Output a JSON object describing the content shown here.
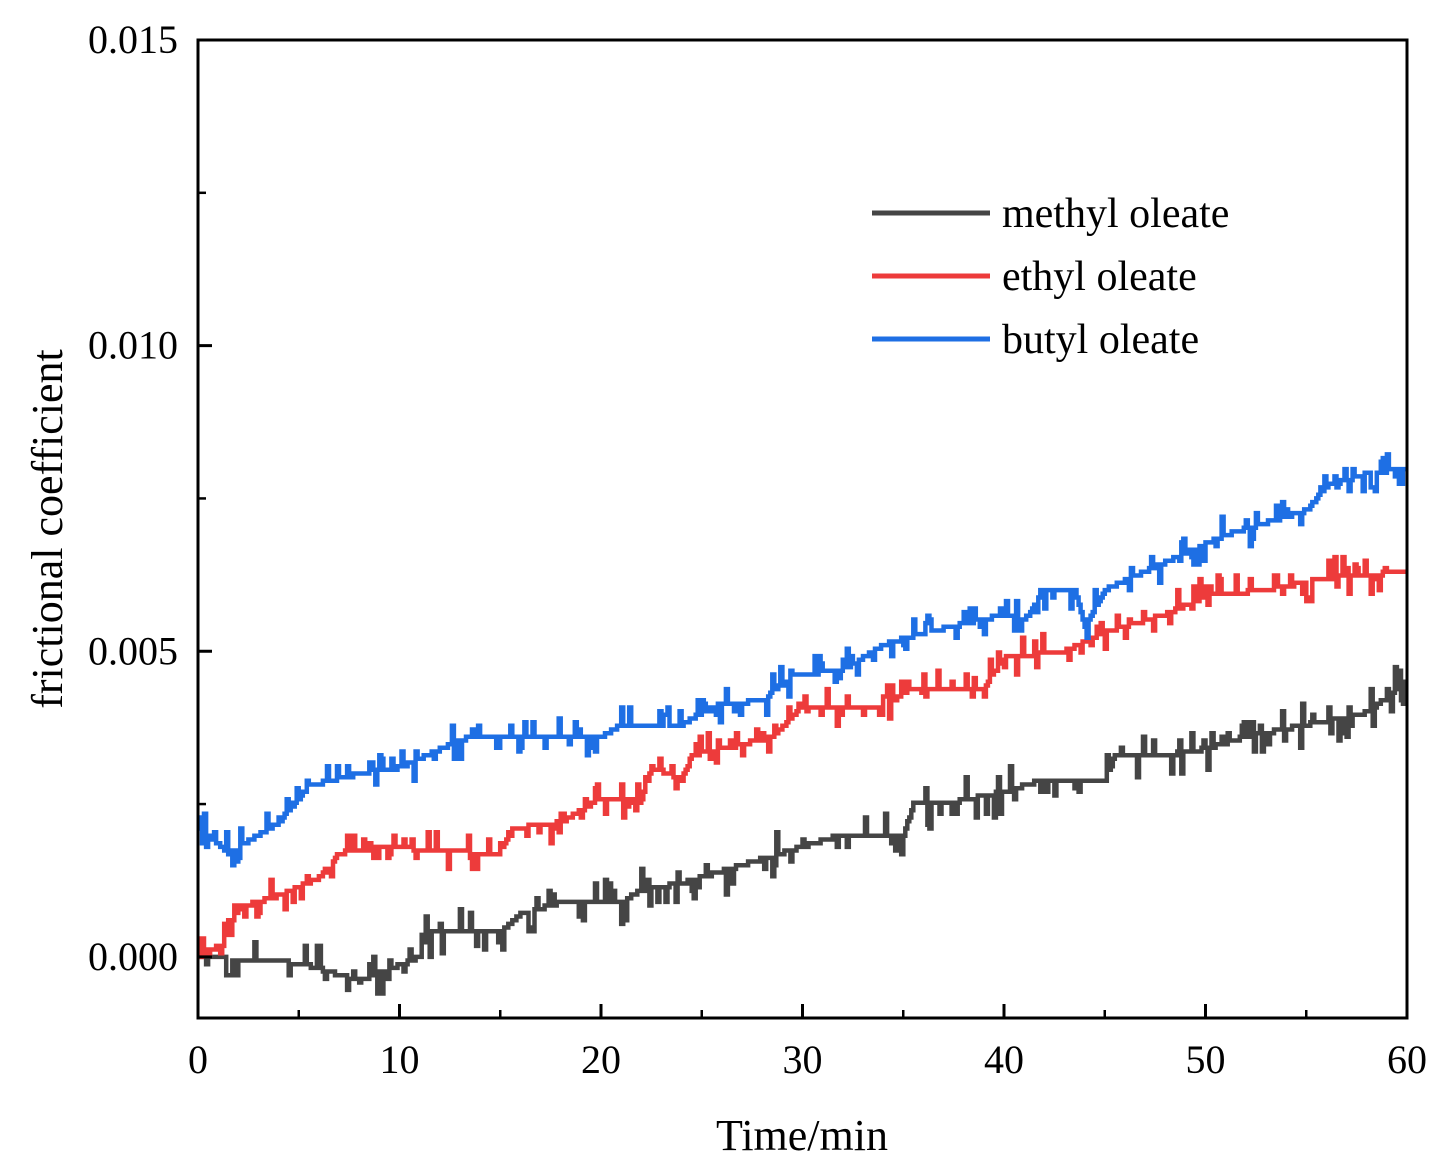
{
  "chart_data": {
    "type": "line",
    "title": "",
    "xlabel": "Time/min",
    "ylabel": "frictional coefficient",
    "xlim": [
      0,
      60
    ],
    "ylim": [
      -0.001,
      0.015
    ],
    "x_ticks": [
      0,
      10,
      20,
      30,
      40,
      50,
      60
    ],
    "x_tick_labels": [
      "0",
      "10",
      "20",
      "30",
      "40",
      "50",
      "60"
    ],
    "y_ticks": [
      0.0,
      0.005,
      0.01,
      0.015
    ],
    "y_tick_labels": [
      "0.000",
      "0.005",
      "0.010",
      "0.015"
    ],
    "grid": false,
    "legend": "top-right",
    "series": [
      {
        "name": "methyl oleate",
        "color": "#454545",
        "noise": 0.00028,
        "points": [
          [
            0,
            0.0
          ],
          [
            5,
            -0.0001
          ],
          [
            8,
            -0.0004
          ],
          [
            11,
            0.0
          ],
          [
            11.3,
            0.0004
          ],
          [
            15,
            0.0004
          ],
          [
            16,
            0.0007
          ],
          [
            18,
            0.0009
          ],
          [
            21,
            0.0009
          ],
          [
            22,
            0.0011
          ],
          [
            24,
            0.0012
          ],
          [
            27,
            0.0015
          ],
          [
            30,
            0.0018
          ],
          [
            32,
            0.002
          ],
          [
            35,
            0.002
          ],
          [
            35.5,
            0.0025
          ],
          [
            37,
            0.0025
          ],
          [
            40,
            0.0027
          ],
          [
            42,
            0.0029
          ],
          [
            45,
            0.0029
          ],
          [
            45.5,
            0.0033
          ],
          [
            48,
            0.0033
          ],
          [
            50,
            0.0034
          ],
          [
            52,
            0.0036
          ],
          [
            55,
            0.0038
          ],
          [
            58,
            0.004
          ],
          [
            60,
            0.0045
          ]
        ]
      },
      {
        "name": "ethyl oleate",
        "color": "#ed3b3b",
        "noise": 0.00022,
        "points": [
          [
            0,
            0.0
          ],
          [
            1.2,
            0.0002
          ],
          [
            2,
            0.0008
          ],
          [
            4,
            0.001
          ],
          [
            6,
            0.0013
          ],
          [
            7,
            0.0017
          ],
          [
            9,
            0.0018
          ],
          [
            14,
            0.0017
          ],
          [
            15,
            0.0017
          ],
          [
            15.5,
            0.0021
          ],
          [
            18,
            0.0022
          ],
          [
            20,
            0.0026
          ],
          [
            22,
            0.0026
          ],
          [
            22.5,
            0.0031
          ],
          [
            24,
            0.0029
          ],
          [
            24.5,
            0.0033
          ],
          [
            26,
            0.0034
          ],
          [
            28.5,
            0.0036
          ],
          [
            30,
            0.0041
          ],
          [
            34,
            0.0041
          ],
          [
            35.5,
            0.0044
          ],
          [
            39,
            0.0044
          ],
          [
            40,
            0.0049
          ],
          [
            43,
            0.005
          ],
          [
            45,
            0.0053
          ],
          [
            48,
            0.0056
          ],
          [
            50,
            0.0059
          ],
          [
            53,
            0.006
          ],
          [
            56,
            0.0062
          ],
          [
            60,
            0.0063
          ]
        ]
      },
      {
        "name": "butyl oleate",
        "color": "#1e6fe4",
        "noise": 0.00022,
        "points": [
          [
            0,
            0.0021
          ],
          [
            1.5,
            0.0017
          ],
          [
            3,
            0.002
          ],
          [
            4,
            0.0022
          ],
          [
            5.5,
            0.0028
          ],
          [
            8,
            0.003
          ],
          [
            10,
            0.0031
          ],
          [
            12,
            0.0034
          ],
          [
            13.5,
            0.0036
          ],
          [
            18,
            0.0036
          ],
          [
            20,
            0.0036
          ],
          [
            21,
            0.0038
          ],
          [
            24,
            0.0038
          ],
          [
            25.5,
            0.0041
          ],
          [
            28,
            0.0042
          ],
          [
            29.5,
            0.0046
          ],
          [
            32,
            0.0047
          ],
          [
            34,
            0.0051
          ],
          [
            36,
            0.0053
          ],
          [
            40,
            0.0056
          ],
          [
            41,
            0.0055
          ],
          [
            42,
            0.006
          ],
          [
            43.5,
            0.006
          ],
          [
            44,
            0.0054
          ],
          [
            45,
            0.006
          ],
          [
            47,
            0.0063
          ],
          [
            49,
            0.0066
          ],
          [
            51,
            0.0069
          ],
          [
            53,
            0.0071
          ],
          [
            55,
            0.0073
          ],
          [
            56,
            0.0077
          ],
          [
            58,
            0.0079
          ],
          [
            60,
            0.008
          ]
        ]
      }
    ]
  }
}
